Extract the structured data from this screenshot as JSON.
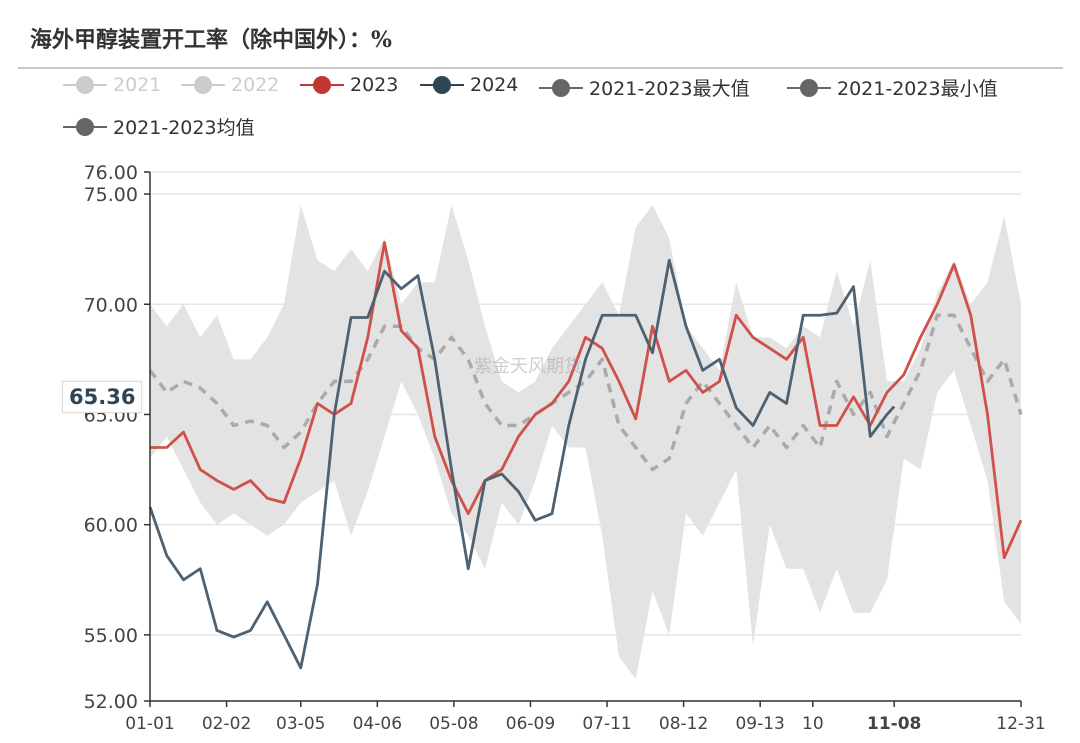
{
  "title": "海外甲醇装置开工率（除中国外）：%",
  "watermark": "紫金天风期货",
  "legend": [
    {
      "label": "2021",
      "color": "#cccccc",
      "active": false
    },
    {
      "label": "2022",
      "color": "#cccccc",
      "active": false
    },
    {
      "label": "2023",
      "color": "#c23531",
      "active": true
    },
    {
      "label": "2024",
      "color": "#2f4554",
      "active": true
    },
    {
      "label": "2021-2023最大值",
      "color": "#666666",
      "active": true
    },
    {
      "label": "2021-2023最小值",
      "color": "#666666",
      "active": true
    },
    {
      "label": "2021-2023均值",
      "color": "#666666",
      "active": true
    }
  ],
  "axis_pointer": {
    "x_label": "11-08",
    "y_label": "65.36"
  },
  "chart_data": {
    "type": "line",
    "title": "海外甲醇装置开工率（除中国外）：%",
    "xlabel": "",
    "ylabel": "",
    "ylim": [
      52,
      76
    ],
    "y_ticks": [
      "52.00",
      "55.00",
      "60.00",
      "65.00",
      "70.00",
      "75.00",
      "76.00"
    ],
    "x_ticks": [
      {
        "label": "01-01",
        "date": "01-01"
      },
      {
        "label": "02-02",
        "date": "02-02"
      },
      {
        "label": "03-05",
        "date": "03-05"
      },
      {
        "label": "04-06",
        "date": "04-06"
      },
      {
        "label": "05-08",
        "date": "05-08"
      },
      {
        "label": "06-09",
        "date": "06-09"
      },
      {
        "label": "07-11",
        "date": "07-11"
      },
      {
        "label": "08-12",
        "date": "08-12"
      },
      {
        "label": "09-13",
        "date": "09-13"
      },
      {
        "label": "10",
        "date": "10-05"
      },
      {
        "label": "11-08",
        "date": "11-08",
        "highlight": true
      },
      {
        "label": "12-31",
        "date": "12-31"
      }
    ],
    "grid": true,
    "legend_position": "top",
    "x": [
      "01-01",
      "01-08",
      "01-15",
      "01-22",
      "01-29",
      "02-05",
      "02-12",
      "02-19",
      "02-26",
      "03-05",
      "03-12",
      "03-19",
      "03-26",
      "04-02",
      "04-09",
      "04-16",
      "04-23",
      "04-30",
      "05-07",
      "05-14",
      "05-21",
      "05-28",
      "06-04",
      "06-11",
      "06-18",
      "06-25",
      "07-02",
      "07-09",
      "07-16",
      "07-23",
      "07-30",
      "08-06",
      "08-13",
      "08-20",
      "08-27",
      "09-03",
      "09-10",
      "09-17",
      "09-24",
      "10-01",
      "10-08",
      "10-15",
      "10-22",
      "10-29",
      "11-05",
      "11-12",
      "11-19",
      "11-26",
      "12-03",
      "12-10",
      "12-17",
      "12-24",
      "12-31"
    ],
    "band": {
      "max_name": "2021-2023最大值",
      "min_name": "2021-2023最小值",
      "color": "#e3e3e3",
      "max": [
        70,
        69,
        70,
        68.5,
        69.5,
        67.5,
        67.5,
        68.5,
        70,
        74.5,
        72,
        71.5,
        72.5,
        71.5,
        73,
        70,
        71,
        71,
        74.5,
        72,
        69,
        66.5,
        66,
        66.5,
        68,
        69,
        70,
        71,
        69.5,
        73.5,
        74.5,
        73,
        69,
        68,
        67,
        71,
        68.5,
        68.5,
        68,
        69,
        68.5,
        71.5,
        69,
        72,
        66.5,
        66.5,
        68,
        70.5,
        72,
        70,
        71,
        74,
        70
      ],
      "min": [
        63,
        64,
        62.5,
        61,
        60,
        60.5,
        60,
        59.5,
        60,
        61,
        61.5,
        62,
        59.5,
        61.5,
        64,
        66.5,
        65,
        63,
        60.5,
        59.5,
        58,
        61,
        60,
        62,
        64.5,
        63.5,
        63.5,
        59.5,
        54,
        53,
        57,
        55,
        60.5,
        59.5,
        61,
        62.5,
        54.5,
        60,
        58,
        58,
        56,
        58,
        56,
        56,
        57.5,
        63,
        62.5,
        66,
        67,
        64.5,
        62,
        56.5,
        55.5
      ]
    },
    "series": [
      {
        "name": "2021-2023均值",
        "color": "#aaaaaa",
        "dashed": true,
        "values": [
          67,
          66,
          66.5,
          66.2,
          65.5,
          64.5,
          64.7,
          64.5,
          63.5,
          64.2,
          65.5,
          66.5,
          66.5,
          67.5,
          69,
          69,
          68,
          67.5,
          68.5,
          67.5,
          65.5,
          64.5,
          64.5,
          65,
          65.5,
          66,
          66.5,
          67.5,
          64.5,
          63.5,
          62.5,
          63,
          65.5,
          66.5,
          65.5,
          64.5,
          63.5,
          64.5,
          63.5,
          64.5,
          63.5,
          66.5,
          65,
          66,
          64,
          65.5,
          67,
          69.5,
          69.5,
          68,
          66.5,
          67.5,
          65
        ]
      },
      {
        "name": "2023",
        "color": "#d0504b",
        "values": [
          63.5,
          63.5,
          64.2,
          62.5,
          62,
          61.6,
          62,
          61.2,
          61,
          63,
          65.5,
          65,
          65.5,
          68.5,
          72.8,
          68.8,
          68,
          64,
          62,
          60.5,
          62,
          62.5,
          64,
          65,
          65.5,
          66.5,
          68.5,
          68,
          66.5,
          64.8,
          69,
          66.5,
          67,
          66,
          66.5,
          69.5,
          68.5,
          68,
          67.5,
          68.5,
          64.5,
          64.5,
          65.8,
          64.5,
          66,
          66.8,
          68.5,
          70,
          71.8,
          69.5,
          65,
          58.5,
          60.2
        ]
      },
      {
        "name": "2024",
        "color": "#4e6170",
        "values": [
          60.8,
          58.6,
          57.5,
          58,
          55.2,
          54.9,
          55.2,
          56.5,
          55,
          53.5,
          57.3,
          65,
          69.4,
          69.4,
          71.5,
          70.7,
          71.3,
          67.5,
          62.5,
          58,
          62,
          62.3,
          61.5,
          60.2,
          60.5,
          64.5,
          67.5,
          69.5,
          69.5,
          69.5,
          67.8,
          72,
          69,
          67,
          67.5,
          65.3,
          64.5,
          66,
          65.5,
          69.5,
          69.5,
          69.6,
          70.8,
          64,
          65,
          null,
          null,
          null,
          null,
          null,
          null,
          null,
          null
        ],
        "last_point": {
          "x": "11-08",
          "y": 65.36
        }
      }
    ]
  }
}
